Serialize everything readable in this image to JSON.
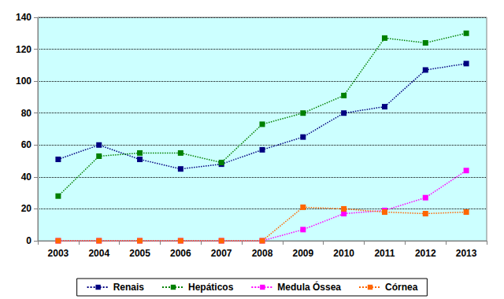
{
  "chart_data": {
    "type": "line",
    "categories": [
      "2003",
      "2004",
      "2005",
      "2006",
      "2007",
      "2008",
      "2009",
      "2010",
      "2011",
      "2012",
      "2013"
    ],
    "series": [
      {
        "name": "Renais",
        "color": "#000080",
        "marker": "square",
        "line_style": "dotted",
        "values": [
          51,
          60,
          51,
          45,
          48,
          57,
          65,
          80,
          84,
          107,
          111
        ]
      },
      {
        "name": "Hepáticos",
        "color": "#008000",
        "marker": "square",
        "line_style": "dotted",
        "values": [
          28,
          53,
          55,
          55,
          49,
          73,
          80,
          91,
          127,
          124,
          130
        ]
      },
      {
        "name": "Medula Óssea",
        "color": "#ff00ff",
        "marker": "square",
        "line_style": "dotted",
        "values": [
          0,
          0,
          0,
          0,
          0,
          0,
          7,
          17,
          19,
          27,
          44
        ]
      },
      {
        "name": "Córnea",
        "color": "#ff6600",
        "marker": "square",
        "line_style": "dotted",
        "values": [
          0,
          0,
          0,
          0,
          0,
          0,
          21,
          20,
          18,
          17,
          18
        ]
      }
    ],
    "ylim": [
      0,
      140
    ],
    "yticks": [
      0,
      20,
      40,
      60,
      80,
      100,
      120,
      140
    ],
    "grid": true,
    "legend": "bottom"
  }
}
